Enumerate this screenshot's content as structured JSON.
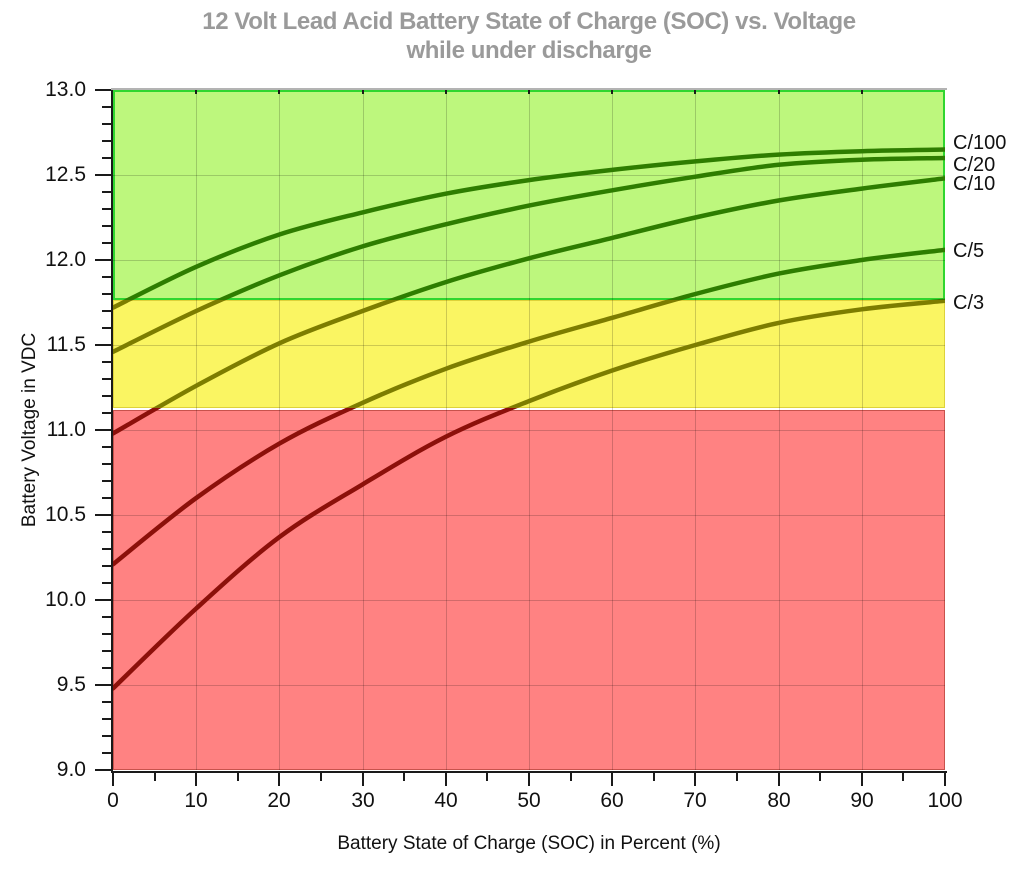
{
  "chart_data": {
    "type": "line",
    "title_line1": "12 Volt Lead Acid Battery State of Charge (SOC) vs. Voltage",
    "title_line2": "while under discharge",
    "xlabel": "Battery State of Charge (SOC) in Percent (%)",
    "ylabel": "Battery Voltage in VDC",
    "xlim": [
      0,
      100
    ],
    "ylim": [
      9.0,
      13.0
    ],
    "grid": {
      "x_major_step": 10,
      "x_minor_step": 5,
      "y_major_step": 0.5,
      "y_minor_step": 0.1
    },
    "axis": {
      "x_ticks": [
        "0",
        "10",
        "20",
        "30",
        "40",
        "50",
        "60",
        "70",
        "80",
        "90",
        "100"
      ],
      "y_ticks": [
        "13.0",
        "12.5",
        "12.0",
        "11.5",
        "11.0",
        "10.5",
        "10.0",
        "9.5",
        "9.0"
      ]
    },
    "zones": [
      {
        "name": "green",
        "from": 11.765,
        "to": 13.0,
        "fill": "#bdf77d",
        "border": "#2fd62f",
        "curve_color": "#2e7d00"
      },
      {
        "name": "yellow",
        "from": 11.13,
        "to": 11.765,
        "fill": "#faf562",
        "border": "#ddd23a",
        "curve_color": "#7d7d00"
      },
      {
        "name": "red",
        "from": 9.0,
        "to": 11.13,
        "fill": "#ff8282",
        "border": "#c8524c",
        "curve_color": "#8c100a"
      }
    ],
    "x_points": [
      0,
      10,
      20,
      30,
      40,
      50,
      60,
      70,
      80,
      90,
      100
    ],
    "series": [
      {
        "name": "C/100",
        "label_v": 12.69,
        "values": [
          11.72,
          11.96,
          12.15,
          12.28,
          12.39,
          12.47,
          12.53,
          12.58,
          12.62,
          12.64,
          12.65
        ]
      },
      {
        "name": "C/20",
        "label_v": 12.56,
        "values": [
          11.46,
          11.7,
          11.91,
          12.08,
          12.21,
          12.32,
          12.41,
          12.49,
          12.56,
          12.59,
          12.6
        ]
      },
      {
        "name": "C/10",
        "label_v": 12.45,
        "values": [
          10.98,
          11.26,
          11.51,
          11.7,
          11.87,
          12.01,
          12.13,
          12.25,
          12.35,
          12.42,
          12.48
        ]
      },
      {
        "name": "C/5",
        "label_v": 12.05,
        "values": [
          10.21,
          10.6,
          10.92,
          11.16,
          11.36,
          11.52,
          11.66,
          11.8,
          11.92,
          12.0,
          12.06
        ]
      },
      {
        "name": "C/3",
        "label_v": 11.75,
        "values": [
          9.48,
          9.95,
          10.37,
          10.68,
          10.96,
          11.17,
          11.35,
          11.5,
          11.63,
          11.71,
          11.76
        ]
      }
    ]
  }
}
